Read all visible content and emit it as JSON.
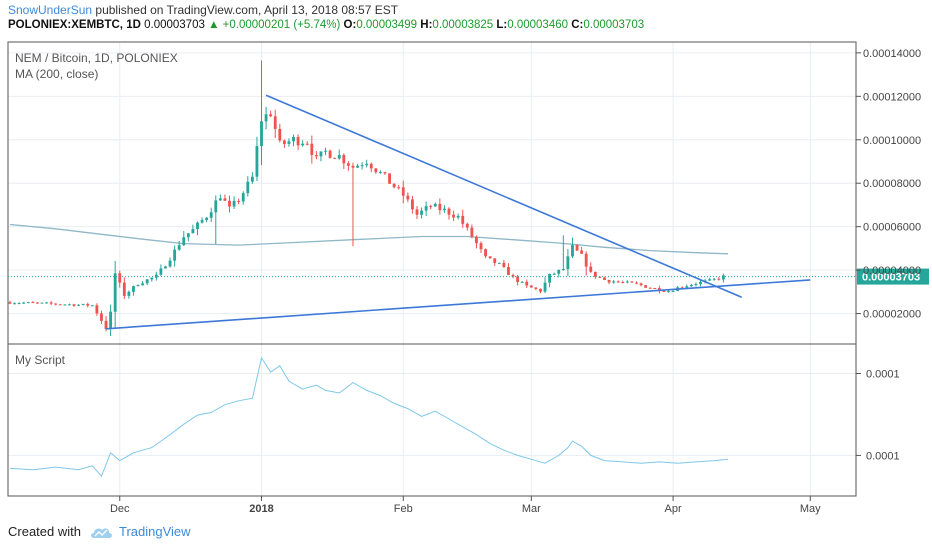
{
  "header": {
    "author": "SnowUnderSun",
    "published": "published on TradingView.com, April 13, 2018 08:57 EST",
    "symbol": "POLONIEX:XEMBTC, 1D",
    "last": "0.00003703",
    "change_arrow": "▲",
    "change": "+0.00000201 (+5.74%)",
    "o_label": "O:",
    "o": "0.00003499",
    "h_label": "H:",
    "h": "0.00003825",
    "l_label": "L:",
    "l": "0.00003460",
    "c_label": "C:",
    "c": "0.00003703"
  },
  "footer": {
    "created_with": "Created with",
    "brand": "TradingView",
    "brand_icon": "tradingview-cloud-icon"
  },
  "colors": {
    "up": "#26a69a",
    "down": "#ef5350",
    "ma": "#8fb7c8",
    "trendline": "#3c78d8",
    "script_line": "#7ec8ea",
    "price_tag": "#26a69a",
    "grid": "#e9edf2"
  },
  "chart_data": [
    {
      "type": "candlestick",
      "legend": [
        "NEM / Bitcoin, 1D, POLONIEX",
        "MA (200, close)"
      ],
      "ylim": [
        6e-06,
        0.000145
      ],
      "y_ticks": [
        2e-05,
        4e-05,
        6e-05,
        8e-05,
        0.0001,
        0.00012,
        0.00014
      ],
      "y_tick_labels": [
        "0.00002000",
        "0.00004000",
        "0.00006000",
        "0.00008000",
        "0.00010000",
        "0.00012000",
        "0.00014000"
      ],
      "last_price_label": "0.00003703",
      "last_price": 3.703e-05,
      "x_tick_labels": [
        "Dec",
        "2018",
        "Feb",
        "Mar",
        "Apr",
        "May"
      ],
      "x_ticks_day": [
        24,
        55,
        86,
        114,
        145,
        175
      ],
      "x_start_label": "Nov 7, 2017",
      "xlim_days": [
        0,
        185
      ],
      "price_points": [
        [
          0,
          2.52e-05
        ],
        [
          18,
          2.38e-05
        ],
        [
          20,
          1.68e-05
        ],
        [
          21,
          1.31e-05
        ],
        [
          22,
          2.05e-05
        ],
        [
          23,
          3.85e-05
        ],
        [
          25,
          2.85e-05
        ],
        [
          28,
          3.38e-05
        ],
        [
          32,
          3.72e-05
        ],
        [
          35,
          4.55e-05
        ],
        [
          38,
          5.55e-05
        ],
        [
          40,
          5.85e-05
        ],
        [
          43,
          6.5e-05
        ],
        [
          46,
          7.45e-05
        ],
        [
          48,
          6.8e-05
        ],
        [
          50,
          7.25e-05
        ],
        [
          53,
          8.25e-05
        ],
        [
          55,
          0.0001095
        ],
        [
          57,
          0.0001125
        ],
        [
          59,
          9.75e-05
        ],
        [
          62,
          0.0001
        ],
        [
          65,
          9.95e-05
        ],
        [
          67,
          9.05e-05
        ],
        [
          69,
          9.45e-05
        ],
        [
          72,
          9.25e-05
        ],
        [
          75,
          8.75e-05
        ],
        [
          78,
          9.05e-05
        ],
        [
          80,
          8.65e-05
        ],
        [
          83,
          8.05e-05
        ],
        [
          86,
          7.45e-05
        ],
        [
          89,
          6.55e-05
        ],
        [
          92,
          6.95e-05
        ],
        [
          95,
          6.75e-05
        ],
        [
          98,
          6.45e-05
        ],
        [
          101,
          5.55e-05
        ],
        [
          104,
          4.55e-05
        ],
        [
          107,
          4.25e-05
        ],
        [
          110,
          3.65e-05
        ],
        [
          113,
          3.25e-05
        ],
        [
          116,
          3.05e-05
        ],
        [
          118,
          3.75e-05
        ],
        [
          121,
          4.05e-05
        ],
        [
          123,
          5.05e-05
        ],
        [
          125,
          4.65e-05
        ],
        [
          127,
          3.85e-05
        ],
        [
          130,
          3.55e-05
        ],
        [
          133,
          3.45e-05
        ],
        [
          137,
          3.35e-05
        ],
        [
          141,
          3.15e-05
        ],
        [
          144,
          3.05e-05
        ],
        [
          147,
          3.25e-05
        ],
        [
          150,
          3.4e-05
        ],
        [
          153,
          3.5e-05
        ],
        [
          156,
          3.7e-05
        ]
      ],
      "ma_points": [
        [
          0,
          6.1e-05
        ],
        [
          10,
          5.9e-05
        ],
        [
          20,
          5.65e-05
        ],
        [
          30,
          5.4e-05
        ],
        [
          38,
          5.22e-05
        ],
        [
          50,
          5.15e-05
        ],
        [
          60,
          5.25e-05
        ],
        [
          75,
          5.4e-05
        ],
        [
          90,
          5.55e-05
        ],
        [
          100,
          5.55e-05
        ],
        [
          110,
          5.4e-05
        ],
        [
          120,
          5.25e-05
        ],
        [
          130,
          5.05e-05
        ],
        [
          140,
          4.9e-05
        ],
        [
          150,
          4.8e-05
        ],
        [
          157,
          4.75e-05
        ]
      ],
      "trendlines": [
        {
          "from": [
            56,
            0.0001205
          ],
          "to": [
            160,
            2.75e-05
          ]
        },
        {
          "from": [
            21,
            1.3e-05
          ],
          "to": [
            175,
            3.55e-05
          ]
        }
      ]
    },
    {
      "type": "line",
      "legend": [
        "My Script"
      ],
      "y_tick_labels": [
        "0.0001",
        "0.0001"
      ],
      "values_rel": [
        [
          0,
          0.12
        ],
        [
          5,
          0.11
        ],
        [
          10,
          0.13
        ],
        [
          15,
          0.11
        ],
        [
          18,
          0.14
        ],
        [
          20,
          0.06
        ],
        [
          22,
          0.24
        ],
        [
          24,
          0.18
        ],
        [
          27,
          0.24
        ],
        [
          31,
          0.28
        ],
        [
          35,
          0.38
        ],
        [
          38,
          0.46
        ],
        [
          41,
          0.53
        ],
        [
          44,
          0.55
        ],
        [
          47,
          0.61
        ],
        [
          50,
          0.64
        ],
        [
          53,
          0.66
        ],
        [
          55,
          0.97
        ],
        [
          57,
          0.86
        ],
        [
          59,
          0.91
        ],
        [
          61,
          0.79
        ],
        [
          64,
          0.73
        ],
        [
          67,
          0.76
        ],
        [
          69,
          0.72
        ],
        [
          72,
          0.7
        ],
        [
          75,
          0.78
        ],
        [
          78,
          0.72
        ],
        [
          81,
          0.68
        ],
        [
          84,
          0.62
        ],
        [
          87,
          0.58
        ],
        [
          90,
          0.52
        ],
        [
          93,
          0.56
        ],
        [
          96,
          0.5
        ],
        [
          99,
          0.44
        ],
        [
          102,
          0.38
        ],
        [
          105,
          0.31
        ],
        [
          108,
          0.26
        ],
        [
          111,
          0.22
        ],
        [
          114,
          0.19
        ],
        [
          117,
          0.16
        ],
        [
          120,
          0.22
        ],
        [
          122,
          0.28
        ],
        [
          123,
          0.33
        ],
        [
          125,
          0.29
        ],
        [
          127,
          0.22
        ],
        [
          130,
          0.18
        ],
        [
          134,
          0.17
        ],
        [
          138,
          0.16
        ],
        [
          142,
          0.17
        ],
        [
          146,
          0.16
        ],
        [
          150,
          0.17
        ],
        [
          154,
          0.18
        ],
        [
          157,
          0.19
        ]
      ]
    }
  ]
}
